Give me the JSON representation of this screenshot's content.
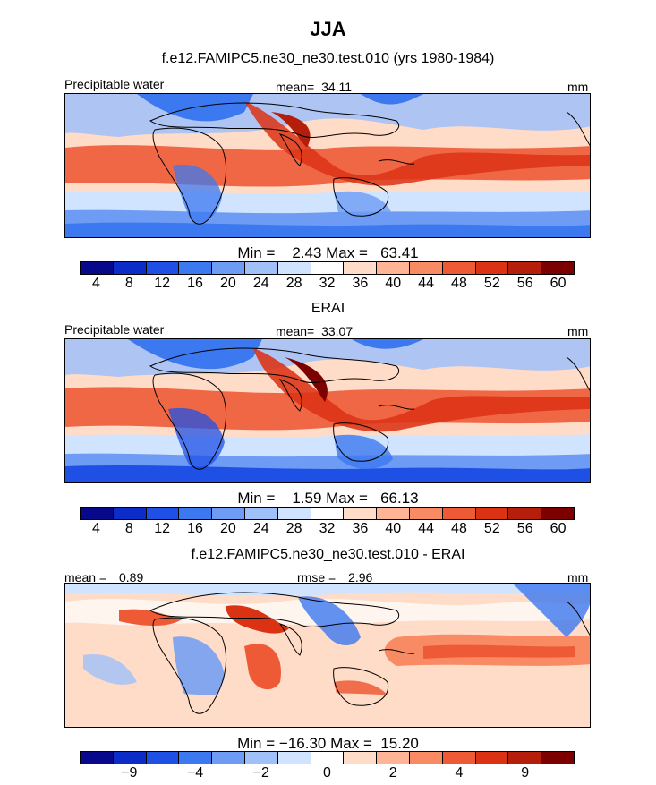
{
  "figure": {
    "season": "JJA",
    "model_title": "f.e12.FAMIPC5.ne30_ne30.test.010 (yrs 1980-1984)",
    "obs_title": "ERAI",
    "diff_title": "f.e12.FAMIPC5.ne30_ne30.test.010 - ERAI"
  },
  "chart_data": [
    {
      "type": "heatmap",
      "panel": "model",
      "variable": "Precipitable water",
      "units": "mm",
      "mean_label": "mean=",
      "mean": "34.11",
      "min_label": "Min =",
      "min": "2.43",
      "max_label": "Max =",
      "max": "63.41",
      "levels": [
        "4",
        "8",
        "12",
        "16",
        "20",
        "24",
        "28",
        "32",
        "36",
        "40",
        "44",
        "48",
        "52",
        "56",
        "60"
      ],
      "colors": [
        "#08088a",
        "#0c2cc8",
        "#1e50e6",
        "#3c78f0",
        "#6e9cf5",
        "#a0c0fa",
        "#d0e4ff",
        "#ffffff",
        "#ffdcc8",
        "#ffb496",
        "#f88a64",
        "#ee5a36",
        "#dc3214",
        "#b41e0a",
        "#7d0000"
      ]
    },
    {
      "type": "heatmap",
      "panel": "observation",
      "variable": "Precipitable water",
      "units": "mm",
      "mean_label": "mean=",
      "mean": "33.07",
      "min_label": "Min =",
      "min": "1.59",
      "max_label": "Max =",
      "max": "66.13",
      "levels": [
        "4",
        "8",
        "12",
        "16",
        "20",
        "24",
        "28",
        "32",
        "36",
        "40",
        "44",
        "48",
        "52",
        "56",
        "60"
      ],
      "colors": [
        "#08088a",
        "#0c2cc8",
        "#1e50e6",
        "#3c78f0",
        "#6e9cf5",
        "#a0c0fa",
        "#d0e4ff",
        "#ffffff",
        "#ffdcc8",
        "#ffb496",
        "#f88a64",
        "#ee5a36",
        "#dc3214",
        "#b41e0a",
        "#7d0000"
      ]
    },
    {
      "type": "heatmap",
      "panel": "difference",
      "variable": "",
      "units": "mm",
      "mean_label": "mean =",
      "mean": "0.89",
      "rmse_label": "rmse =",
      "rmse": "2.96",
      "min_label": "Min =",
      "min": "−16.30",
      "max_label": "Max =",
      "max": "15.20",
      "levels": [
        "−9",
        "−4",
        "−2",
        "0",
        "2",
        "4",
        "9"
      ],
      "colors": [
        "#08088a",
        "#0c2cc8",
        "#1e50e6",
        "#3c78f0",
        "#6e9cf5",
        "#a0c0fa",
        "#d0e4ff",
        "#ffffff",
        "#ffdcc8",
        "#ffb496",
        "#f88a64",
        "#ee5a36",
        "#dc3214",
        "#b41e0a",
        "#7d0000"
      ]
    }
  ]
}
